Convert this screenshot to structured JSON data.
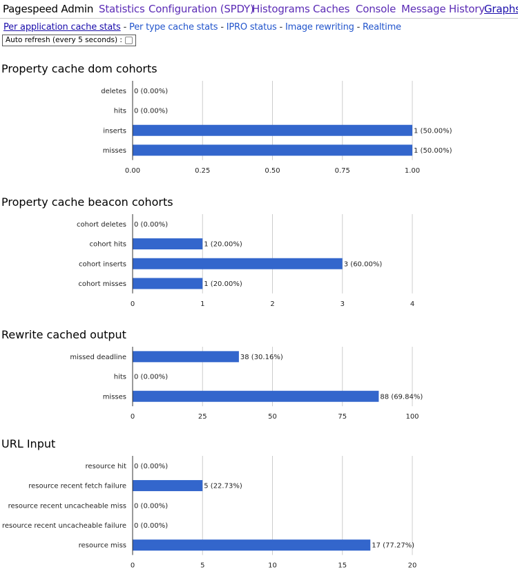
{
  "nav": {
    "brand": "Pagespeed Admin",
    "items": [
      "Statistics",
      "Configuration (SPDY)",
      "Histograms",
      "Caches",
      "Console",
      "Message History",
      "Graphs"
    ]
  },
  "subnav": {
    "links": [
      "Per application cache stats",
      "Per type cache stats",
      "IPRO status",
      "Image rewriting",
      "Realtime"
    ],
    "separator": "-"
  },
  "auto_refresh": {
    "label": "Auto refresh (every 5 seconds) :"
  },
  "chart_data": [
    {
      "type": "bar",
      "title": "Property cache dom cohorts",
      "categories": [
        "deletes",
        "hits",
        "inserts",
        "misses"
      ],
      "values": [
        0,
        0,
        1,
        1
      ],
      "labels": [
        "0 (0.00%)",
        "0 (0.00%)",
        "1 (50.00%)",
        "1 (50.00%)"
      ],
      "xticks": [
        "0.00",
        "0.25",
        "0.50",
        "0.75",
        "1.00"
      ],
      "xlim": [
        0,
        1
      ],
      "grid": true,
      "color": "#3366cc"
    },
    {
      "type": "bar",
      "title": "Property cache beacon cohorts",
      "categories": [
        "cohort deletes",
        "cohort hits",
        "cohort inserts",
        "cohort misses"
      ],
      "values": [
        0,
        1,
        3,
        1
      ],
      "labels": [
        "0 (0.00%)",
        "1 (20.00%)",
        "3 (60.00%)",
        "1 (20.00%)"
      ],
      "xticks": [
        "0",
        "1",
        "2",
        "3",
        "4"
      ],
      "xlim": [
        0,
        4
      ],
      "grid": true,
      "color": "#3366cc"
    },
    {
      "type": "bar",
      "title": "Rewrite cached output",
      "categories": [
        "missed deadline",
        "hits",
        "misses"
      ],
      "values": [
        38,
        0,
        88
      ],
      "labels": [
        "38 (30.16%)",
        "0 (0.00%)",
        "88 (69.84%)"
      ],
      "xticks": [
        "0",
        "25",
        "50",
        "75",
        "100"
      ],
      "xlim": [
        0,
        100
      ],
      "grid": true,
      "color": "#3366cc"
    },
    {
      "type": "bar",
      "title": "URL Input",
      "categories": [
        "resource hit",
        "resource recent fetch failure",
        "resource recent uncacheable miss",
        "resource recent uncacheable failure",
        "resource miss"
      ],
      "values": [
        0,
        5,
        0,
        0,
        17
      ],
      "labels": [
        "0 (0.00%)",
        "5 (22.73%)",
        "0 (0.00%)",
        "0 (0.00%)",
        "17 (77.27%)"
      ],
      "xticks": [
        "0",
        "5",
        "10",
        "15",
        "20"
      ],
      "xlim": [
        0,
        20
      ],
      "grid": true,
      "color": "#3366cc"
    }
  ]
}
